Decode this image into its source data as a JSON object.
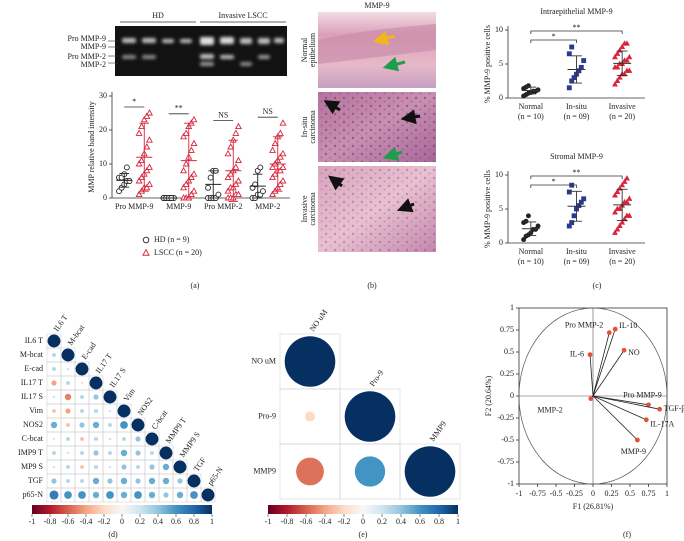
{
  "panel_labels": [
    "(a)",
    "(b)",
    "(c)",
    "(d)",
    "(e)",
    "(f)"
  ],
  "gel": {
    "groups": [
      "HD",
      "Invasive LSCC"
    ],
    "bands": [
      "Pro MMP-9",
      "MMP-9",
      "Pro MMP-2",
      "MMP-2"
    ]
  },
  "histology": {
    "title": "MMP-9",
    "rows": [
      [
        "Normal",
        "epithelium"
      ],
      [
        "In-situ",
        "carcinoma"
      ],
      [
        "Invasive",
        "carcinoma"
      ]
    ]
  },
  "chart_data": [
    {
      "type": "strip",
      "y_label": "MMP relative band intensity",
      "categories": [
        "Pro MMP-9",
        "MMP-9",
        "Pro MMP-2",
        "MMP-2"
      ],
      "ylim": [
        0,
        30
      ],
      "yticks": [
        0,
        10,
        20,
        30
      ],
      "series": [
        {
          "name": "HD (n = 9)",
          "color": "#222222",
          "marker": "circle",
          "filled": false,
          "values": [
            [
              2,
              3,
              4,
              5,
              5,
              6,
              6,
              7,
              9
            ],
            [
              0,
              0,
              0,
              0,
              0,
              0,
              0,
              0,
              0
            ],
            [
              0,
              0,
              0,
              0,
              1,
              3,
              6,
              8,
              8
            ],
            [
              0,
              0,
              1,
              1,
              2,
              3,
              4,
              8,
              9
            ]
          ],
          "means": [
            5.2,
            0,
            4,
            3.5
          ],
          "sds": [
            2,
            0,
            4,
            3.5
          ]
        },
        {
          "name": "LSCC (n = 20)",
          "color": "#d7263d",
          "marker": "triangle",
          "filled": false,
          "values": [
            [
              1,
              2,
              3,
              3,
              4,
              5,
              6,
              7,
              8,
              9,
              10,
              11,
              13,
              15,
              17,
              19,
              21,
              23,
              24,
              25
            ],
            [
              0,
              0,
              0,
              1,
              2,
              3,
              4,
              5,
              6,
              7,
              8,
              10,
              12,
              14,
              16,
              18,
              19,
              21,
              22,
              23
            ],
            [
              0,
              0,
              0,
              1,
              1,
              2,
              3,
              3,
              4,
              5,
              6,
              7,
              8,
              9,
              11,
              13,
              15,
              17,
              19,
              21
            ],
            [
              1,
              2,
              3,
              4,
              5,
              6,
              7,
              8,
              8,
              9,
              9,
              10,
              11,
              12,
              13,
              14,
              16,
              18,
              19,
              22
            ]
          ],
          "means": [
            12,
            11,
            8,
            10
          ],
          "sds": [
            10,
            11,
            9,
            8
          ]
        }
      ],
      "annotations": [
        "*",
        "**",
        "NS",
        "NS"
      ]
    },
    {
      "type": "dot",
      "title": "Intraepithelial MMP-9",
      "y_label": "% MMP-9 positive cells",
      "categories": [
        "Normal",
        "In-situ",
        "Invasive"
      ],
      "category_notes": [
        "(n = 10)",
        "(n = 09)",
        "(n = 20)"
      ],
      "colors": [
        "#222222",
        "#2b3a8f",
        "#d7263d"
      ],
      "markers": [
        "circle",
        "square",
        "triangle"
      ],
      "filled": true,
      "values": [
        [
          0.3,
          0.5,
          0.7,
          0.8,
          1,
          1,
          1.2,
          1.4,
          1.6,
          1.8
        ],
        [
          1.5,
          2.5,
          3,
          3.5,
          4,
          4.5,
          5.5,
          6.5,
          7.5
        ],
        [
          2,
          2.5,
          3,
          3.5,
          3.5,
          4,
          4,
          4.5,
          4.5,
          5,
          5,
          5.5,
          5.5,
          6,
          6,
          6.5,
          7,
          7.5,
          8,
          8
        ]
      ],
      "means": [
        1.1,
        4.2,
        5.1
      ],
      "sds": [
        0.5,
        2,
        1.8
      ],
      "ylim": [
        0,
        10
      ],
      "yticks": [
        0,
        5,
        10
      ],
      "annotations": [
        "*",
        "**"
      ]
    },
    {
      "type": "dot",
      "title": "Stromal MMP-9",
      "y_label": "% MMP-9 positive cells",
      "categories": [
        "Normal",
        "In-situ",
        "Invasive"
      ],
      "category_notes": [
        "(n = 10)",
        "(n = 09)",
        "(n = 20)"
      ],
      "colors": [
        "#222222",
        "#2b3a8f",
        "#d7263d"
      ],
      "markers": [
        "circle",
        "square",
        "triangle"
      ],
      "filled": true,
      "values": [
        [
          0.5,
          1,
          1.2,
          1.5,
          2,
          2,
          2.5,
          3,
          3.2,
          4
        ],
        [
          2.5,
          3,
          4,
          5,
          5.5,
          6,
          6.5,
          7.5,
          8.5
        ],
        [
          1.5,
          2,
          2.5,
          3,
          3.5,
          4,
          4,
          4.5,
          5,
          5,
          5.5,
          6,
          6,
          6.5,
          7,
          7.5,
          8,
          8.5,
          9,
          9.5
        ]
      ],
      "means": [
        2.1,
        5.4,
        5.6
      ],
      "sds": [
        1,
        2.2,
        2.3
      ],
      "ylim": [
        0,
        10
      ],
      "yticks": [
        0,
        5,
        10
      ],
      "annotations": [
        "*",
        "**"
      ]
    },
    {
      "type": "corr",
      "row_labels": [
        "IL6 T",
        "M-bcat",
        "E-cad",
        "IL17 T",
        "IL17 S",
        "Vim",
        "NOS2",
        "C-bcat",
        "IMP9 T",
        "MP9 S",
        "TGF",
        "p65-N"
      ],
      "diag_labels": [
        "IL6 T",
        "M-bcat",
        "E-cad",
        "IL17 T",
        "IL17 S",
        "Vim",
        "NOS2",
        "C-bcat",
        "MMP9 T",
        "MMP9 S",
        "TGF",
        "p65-N"
      ],
      "values": [
        [
          1
        ],
        [
          0.3,
          1
        ],
        [
          0.3,
          0.2,
          1
        ],
        [
          -0.4,
          0.3,
          -0.2,
          1
        ],
        [
          0.2,
          -0.5,
          0.3,
          0.4,
          1
        ],
        [
          -0.3,
          -0.4,
          0.3,
          0.3,
          0.2,
          1
        ],
        [
          0.5,
          -0.3,
          0.4,
          0.5,
          0.3,
          0.6,
          1
        ],
        [
          -0.2,
          0.3,
          -0.3,
          0.3,
          0.2,
          0.3,
          0.4,
          1
        ],
        [
          0.3,
          0.2,
          0.3,
          0.4,
          0.3,
          0.5,
          0.4,
          0.3,
          1
        ],
        [
          0.2,
          0.3,
          -0.3,
          0.3,
          0.2,
          0.4,
          0.3,
          0.4,
          0.5,
          1
        ],
        [
          0.4,
          0.3,
          0.3,
          0.5,
          0.4,
          0.5,
          0.4,
          0.5,
          0.5,
          0.4,
          1
        ],
        [
          0.7,
          0.6,
          0.6,
          0.5,
          0.6,
          0.5,
          0.6,
          0.5,
          0.4,
          0.5,
          0.6,
          1
        ]
      ],
      "colors": [
        "#67001f",
        "#b2182b",
        "#d6604d",
        "#f4a582",
        "#fddbc7",
        "#f7f7f7",
        "#d1e5f0",
        "#92c5de",
        "#4393c3",
        "#2166ac",
        "#053061"
      ],
      "clim": [
        -1,
        1
      ],
      "cticks": [
        -1,
        -0.8,
        -0.6,
        -0.4,
        -0.2,
        0,
        0.2,
        0.4,
        0.6,
        0.8,
        1
      ]
    },
    {
      "type": "corr",
      "row_labels": [
        "NO uM",
        "Pro-9",
        "MMP9"
      ],
      "diag_labels": [
        "NO uM",
        "Pro-9",
        "MMP9"
      ],
      "values": [
        [
          1
        ],
        [
          -0.2,
          1
        ],
        [
          -0.55,
          0.6,
          1
        ]
      ],
      "colors": [
        "#67001f",
        "#b2182b",
        "#d6604d",
        "#f4a582",
        "#fddbc7",
        "#f7f7f7",
        "#d1e5f0",
        "#92c5de",
        "#4393c3",
        "#2166ac",
        "#053061"
      ],
      "clim": [
        -1,
        1
      ],
      "cticks": [
        -1,
        -0.8,
        -0.6,
        -0.4,
        -0.2,
        0,
        0.2,
        0.4,
        0.6,
        0.8,
        1
      ]
    },
    {
      "type": "biplot",
      "x_label": "F1 (26.81%)",
      "y_label": "F2 (20.64%)",
      "xlim": [
        -1,
        1
      ],
      "ylim": [
        -1,
        1
      ],
      "xticks": [
        -1,
        -0.75,
        -0.5,
        -0.25,
        0,
        0.25,
        0.5,
        0.75,
        1
      ],
      "yticks": [
        -1,
        -0.75,
        -0.5,
        -0.25,
        0,
        0.25,
        0.5,
        0.75,
        1
      ],
      "color": "#e0533a",
      "labels": [
        "Pro MMP-2",
        "IL-10",
        "NO",
        "IL-6",
        "Pro MMP-9",
        "TGF-β",
        "IL-17A",
        "MMP-9",
        "MMP-2"
      ],
      "x": [
        0.22,
        0.3,
        0.42,
        -0.04,
        0.75,
        0.9,
        0.72,
        0.6,
        -0.03
      ],
      "y": [
        0.72,
        0.76,
        0.52,
        0.47,
        -0.1,
        -0.15,
        -0.27,
        -0.5,
        -0.03
      ]
    }
  ]
}
